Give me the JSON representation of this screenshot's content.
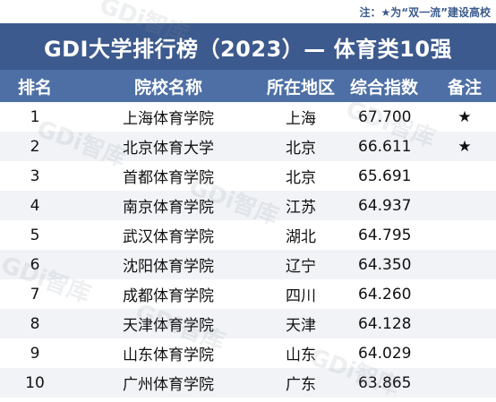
{
  "note": "注：★为“双一流”建设高校",
  "title": "GDI大学排行榜（2023）— 体育类10强",
  "columns": {
    "rank": "排名",
    "name": "院校名称",
    "location": "所在地区",
    "score": "综合指数",
    "remark": "备注"
  },
  "rows": [
    {
      "rank": "1",
      "name": "上海体育学院",
      "location": "上海",
      "score": "67.700",
      "remark": "★"
    },
    {
      "rank": "2",
      "name": "北京体育大学",
      "location": "北京",
      "score": "66.611",
      "remark": "★"
    },
    {
      "rank": "3",
      "name": "首都体育学院",
      "location": "北京",
      "score": "65.691",
      "remark": ""
    },
    {
      "rank": "4",
      "name": "南京体育学院",
      "location": "江苏",
      "score": "64.937",
      "remark": ""
    },
    {
      "rank": "5",
      "name": "武汉体育学院",
      "location": "湖北",
      "score": "64.795",
      "remark": ""
    },
    {
      "rank": "6",
      "name": "沈阳体育学院",
      "location": "辽宁",
      "score": "64.350",
      "remark": ""
    },
    {
      "rank": "7",
      "name": "成都体育学院",
      "location": "四川",
      "score": "64.260",
      "remark": ""
    },
    {
      "rank": "8",
      "name": "天津体育学院",
      "location": "天津",
      "score": "64.128",
      "remark": ""
    },
    {
      "rank": "9",
      "name": "山东体育学院",
      "location": "山东",
      "score": "64.029",
      "remark": ""
    },
    {
      "rank": "10",
      "name": "广州体育学院",
      "location": "广东",
      "score": "63.865",
      "remark": ""
    }
  ],
  "watermark": "GDi智库",
  "colors": {
    "title_bg": "#3d5a8e",
    "header_bg": "#4d6fa6",
    "note_text": "#3a5a8c"
  }
}
